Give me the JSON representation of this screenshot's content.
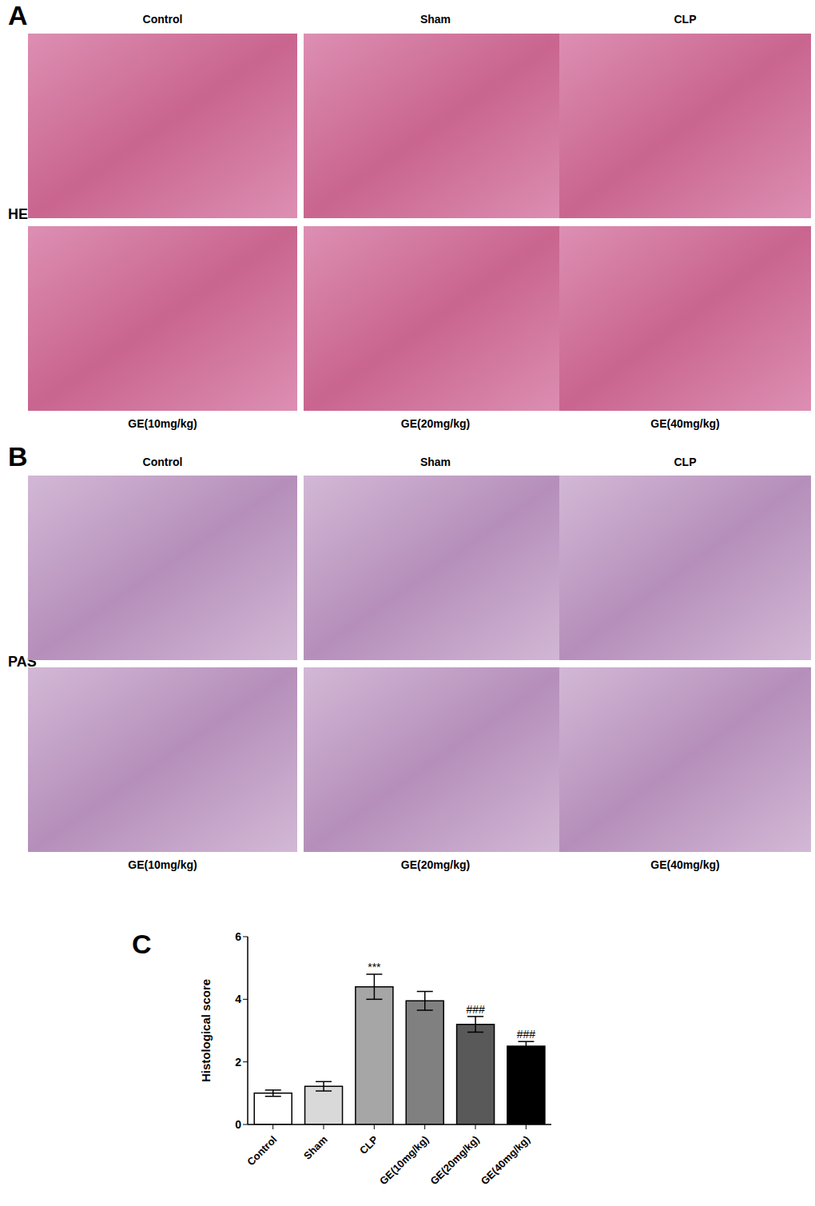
{
  "panels": [
    {
      "panel_label": "A",
      "stain": "HE",
      "top_titles": [
        "Control",
        "Sham",
        "CLP"
      ],
      "bottom_titles": [
        "GE(10mg/kg)",
        "GE(20mg/kg)",
        "GE(40mg/kg)"
      ]
    },
    {
      "panel_label": "B",
      "stain": "PAS",
      "top_titles": [
        "Control",
        "Sham",
        "CLP"
      ],
      "bottom_titles": [
        "GE(10mg/kg)",
        "GE(20mg/kg)",
        "GE(40mg/kg)"
      ]
    }
  ],
  "chart_data": {
    "panel_label": "C",
    "type": "bar",
    "categories": [
      "Control",
      "Sham",
      "CLP",
      "GE(10mg/kg)",
      "GE(20mg/kg)",
      "GE(40mg/kg)"
    ],
    "values": [
      1.0,
      1.22,
      4.4,
      3.95,
      3.2,
      2.5
    ],
    "errors": [
      0.1,
      0.15,
      0.4,
      0.3,
      0.25,
      0.15
    ],
    "annotations": [
      null,
      null,
      "***",
      null,
      "###",
      "###"
    ],
    "colors": [
      "#ffffff",
      "#d9d9d9",
      "#a6a6a6",
      "#808080",
      "#595959",
      "#000000"
    ],
    "ylabel": "Histological score",
    "ylim": [
      0,
      6
    ],
    "yticks": [
      0,
      2,
      4,
      6
    ]
  }
}
